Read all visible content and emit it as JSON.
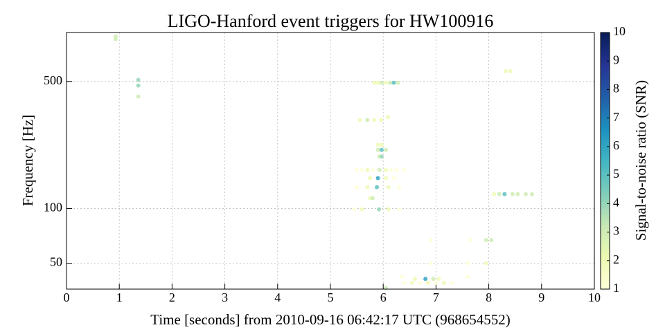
{
  "chart_data": {
    "type": "scatter",
    "title": "LIGO-Hanford event triggers for HW100916",
    "xlabel": "Time [seconds] from 2010-09-16 06:42:17 UTC (968654552)",
    "ylabel": "Frequency [Hz]",
    "colorbar_label": "Signal-to-noise ratio (SNR)",
    "xlim": [
      0,
      10
    ],
    "xticks": [
      0,
      1,
      2,
      3,
      4,
      5,
      6,
      7,
      8,
      9,
      10
    ],
    "ylim": [
      36,
      930
    ],
    "yticks": [
      50,
      100,
      500
    ],
    "ylog": true,
    "grid": true,
    "clim": [
      1,
      10
    ],
    "cticks": [
      1,
      2,
      3,
      4,
      5,
      6,
      7,
      8,
      9,
      10
    ],
    "colormap": [
      "#ffffd9",
      "#edf8b1",
      "#c7e9b4",
      "#7fcdbb",
      "#41b6c4",
      "#1d91c0",
      "#225ea8",
      "#253494",
      "#081d58"
    ],
    "x": [
      0.93,
      0.93,
      1.36,
      1.36,
      1.36,
      5.83,
      5.9,
      5.97,
      6.05,
      6.13,
      6.2,
      6.28,
      5.56,
      5.7,
      5.83,
      5.96,
      6.09,
      8.32,
      8.41,
      5.9,
      5.97,
      5.9,
      5.97,
      6.05,
      5.93,
      5.97,
      5.5,
      5.6,
      5.7,
      5.8,
      6.05,
      6.15,
      6.25,
      6.4,
      5.93,
      5.75,
      5.9,
      6.05,
      6.2,
      5.5,
      5.7,
      5.88,
      6.1,
      6.3,
      5.75,
      5.8,
      5.45,
      5.6,
      5.92,
      6.1,
      6.3,
      8.1,
      8.2,
      8.3,
      8.45,
      8.55,
      8.7,
      8.82,
      6.9,
      7.65,
      7.95,
      8.05,
      6.9,
      7.6,
      7.95,
      6.35,
      7.6,
      6.6,
      6.8,
      6.95,
      7.05,
      6.4,
      6.55,
      6.7,
      6.85,
      7.0,
      7.15,
      7.3,
      6.05
    ],
    "y": [
      885,
      855,
      510,
      475,
      413,
      492,
      492,
      492,
      492,
      492,
      492,
      492,
      307,
      307,
      307,
      307,
      318,
      570,
      570,
      224,
      224,
      210,
      210,
      210,
      193,
      193,
      163,
      163,
      163,
      163,
      163,
      163,
      163,
      163,
      163,
      147,
      147,
      147,
      147,
      131,
      131,
      131,
      131,
      131,
      114,
      114,
      99,
      99,
      99,
      99,
      99,
      120,
      120,
      120,
      120,
      120,
      120,
      120,
      67,
      67,
      67,
      67,
      50,
      50,
      50,
      42,
      42,
      41,
      41,
      41,
      41,
      39,
      39,
      39,
      39,
      39,
      39,
      39,
      36.5
    ],
    "snr": [
      3,
      3,
      4,
      4,
      3,
      2,
      2,
      3,
      2,
      3,
      5,
      3,
      2,
      3,
      2,
      2,
      2,
      2,
      2,
      2,
      2,
      3,
      5,
      3,
      3,
      4,
      1,
      1,
      2,
      1,
      2,
      1,
      1,
      1,
      3,
      2,
      6,
      2,
      1,
      1,
      2,
      5,
      2,
      1,
      2,
      3,
      1,
      2,
      4,
      2,
      1,
      2,
      3,
      5,
      3,
      3,
      3,
      3,
      1,
      1,
      3,
      3,
      1,
      1,
      2,
      1,
      1,
      2,
      6,
      3,
      2,
      1,
      2,
      1,
      2,
      1,
      2,
      1,
      3
    ]
  }
}
